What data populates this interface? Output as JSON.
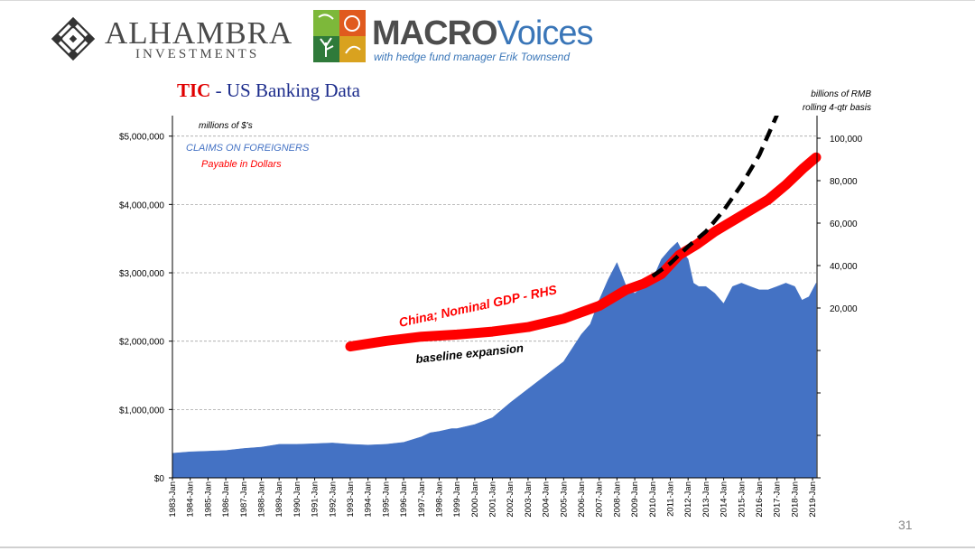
{
  "header": {
    "brand1_name": "ALHAMBRA",
    "brand1_sub": "INVESTMENTS",
    "brand2_part1": "MACRO",
    "brand2_part2": "Voices",
    "brand2_tagline": "with hedge fund manager Erik Townsend"
  },
  "slide": {
    "title_prefix": "TIC",
    "title_rest": " - US Banking Data",
    "page_number": "31"
  },
  "colors": {
    "area": "#4472c4",
    "gdp": "#ff0000",
    "title_prefix": "#e00000",
    "title": "#1c2c8c",
    "legend_blue": "#4472c4"
  },
  "chart_data": {
    "type": "area",
    "title": "TIC - US Banking Data",
    "left_axis": {
      "unit_label": "millions of $'s",
      "ylim": [
        0,
        5300000
      ],
      "ticks": [
        "$0",
        "$1,000,000",
        "$2,000,000",
        "$3,000,000",
        "$4,000,000",
        "$5,000,000"
      ],
      "tick_values": [
        0,
        1000000,
        2000000,
        3000000,
        4000000,
        5000000
      ]
    },
    "right_axis": {
      "unit_label_line1": "billions of RMB",
      "unit_label_line2": "rolling 4-qtr basis",
      "ticks": [
        "20,000",
        "40,000",
        "60,000",
        "80,000",
        "100,000"
      ],
      "tick_values": [
        20000,
        40000,
        60000,
        80000,
        100000
      ]
    },
    "x_labels": [
      "1983-Jan",
      "1984-Jan",
      "1985-Jan",
      "1986-Jan",
      "1987-Jan",
      "1988-Jan",
      "1989-Jan",
      "1990-Jan",
      "1991-Jan",
      "1992-Jan",
      "1993-Jan",
      "1994-Jan",
      "1995-Jan",
      "1996-Jan",
      "1997-Jan",
      "1998-Jan",
      "1999-Jan",
      "2000-Jan",
      "2001-Jan",
      "2002-Jan",
      "2003-Jan",
      "2004-Jan",
      "2005-Jan",
      "2006-Jan",
      "2007-Jan",
      "2008-Jan",
      "2009-Jan",
      "2010-Jan",
      "2011-Jan",
      "2012-Jan",
      "2013-Jan",
      "2014-Jan",
      "2015-Jan",
      "2016-Jan",
      "2017-Jan",
      "2018-Jan",
      "2019-Jan"
    ],
    "legend": {
      "area_line1": "CLAIMS  ON FOREIGNERS",
      "area_line2": "Payable  in Dollars"
    },
    "annotations": {
      "gdp_label": "China; Nominal GDP - RHS",
      "baseline_label": "baseline expansion"
    },
    "series": [
      {
        "name": "CLAIMS ON FOREIGNERS Payable in Dollars",
        "axis": "left",
        "type": "area",
        "points": [
          [
            1983.0,
            360000
          ],
          [
            1984.0,
            380000
          ],
          [
            1985.0,
            390000
          ],
          [
            1986.0,
            400000
          ],
          [
            1987.0,
            430000
          ],
          [
            1988.0,
            450000
          ],
          [
            1989.0,
            490000
          ],
          [
            1990.0,
            490000
          ],
          [
            1991.0,
            500000
          ],
          [
            1992.0,
            510000
          ],
          [
            1993.0,
            490000
          ],
          [
            1994.0,
            480000
          ],
          [
            1995.0,
            490000
          ],
          [
            1996.0,
            520000
          ],
          [
            1997.0,
            600000
          ],
          [
            1997.5,
            660000
          ],
          [
            1998.0,
            680000
          ],
          [
            1998.7,
            720000
          ],
          [
            1999.0,
            720000
          ],
          [
            2000.0,
            780000
          ],
          [
            2001.0,
            880000
          ],
          [
            2002.0,
            1100000
          ],
          [
            2003.0,
            1300000
          ],
          [
            2004.0,
            1500000
          ],
          [
            2005.0,
            1700000
          ],
          [
            2006.0,
            2100000
          ],
          [
            2006.5,
            2250000
          ],
          [
            2007.0,
            2600000
          ],
          [
            2007.5,
            2900000
          ],
          [
            2008.0,
            3150000
          ],
          [
            2008.3,
            2950000
          ],
          [
            2008.6,
            2750000
          ],
          [
            2009.0,
            2700000
          ],
          [
            2009.5,
            2800000
          ],
          [
            2010.0,
            2900000
          ],
          [
            2010.5,
            3200000
          ],
          [
            2011.0,
            3350000
          ],
          [
            2011.4,
            3450000
          ],
          [
            2011.7,
            3300000
          ],
          [
            2012.0,
            3200000
          ],
          [
            2012.3,
            2850000
          ],
          [
            2012.6,
            2800000
          ],
          [
            2013.0,
            2800000
          ],
          [
            2013.5,
            2700000
          ],
          [
            2014.0,
            2550000
          ],
          [
            2014.5,
            2800000
          ],
          [
            2015.0,
            2850000
          ],
          [
            2015.5,
            2800000
          ],
          [
            2016.0,
            2750000
          ],
          [
            2016.5,
            2750000
          ],
          [
            2017.0,
            2800000
          ],
          [
            2017.5,
            2850000
          ],
          [
            2018.0,
            2800000
          ],
          [
            2018.4,
            2600000
          ],
          [
            2018.8,
            2650000
          ],
          [
            2019.2,
            2850000
          ]
        ]
      },
      {
        "name": "China; Nominal GDP - RHS",
        "axis": "right",
        "type": "line",
        "points": [
          [
            1993.0,
            1870
          ],
          [
            1995.0,
            4500
          ],
          [
            1997.0,
            6500
          ],
          [
            1999.0,
            7500
          ],
          [
            2001.0,
            8900
          ],
          [
            2003.0,
            11000
          ],
          [
            2005.0,
            15000
          ],
          [
            2007.0,
            21000
          ],
          [
            2008.5,
            28500
          ],
          [
            2009.5,
            31500
          ],
          [
            2010.5,
            36000
          ],
          [
            2011.5,
            45000
          ],
          [
            2012.5,
            50000
          ],
          [
            2013.5,
            56000
          ],
          [
            2014.5,
            61000
          ],
          [
            2015.5,
            66000
          ],
          [
            2016.5,
            71000
          ],
          [
            2017.5,
            78000
          ],
          [
            2018.5,
            86000
          ],
          [
            2019.2,
            91000
          ]
        ]
      },
      {
        "name": "baseline expansion",
        "axis": "right",
        "type": "dashed-line",
        "points": [
          [
            2010.0,
            35000
          ],
          [
            2011.0,
            41000
          ],
          [
            2012.0,
            49000
          ],
          [
            2013.0,
            56000
          ],
          [
            2014.0,
            66000
          ],
          [
            2015.0,
            78000
          ],
          [
            2016.0,
            92000
          ],
          [
            2017.0,
            111000
          ]
        ]
      }
    ]
  }
}
